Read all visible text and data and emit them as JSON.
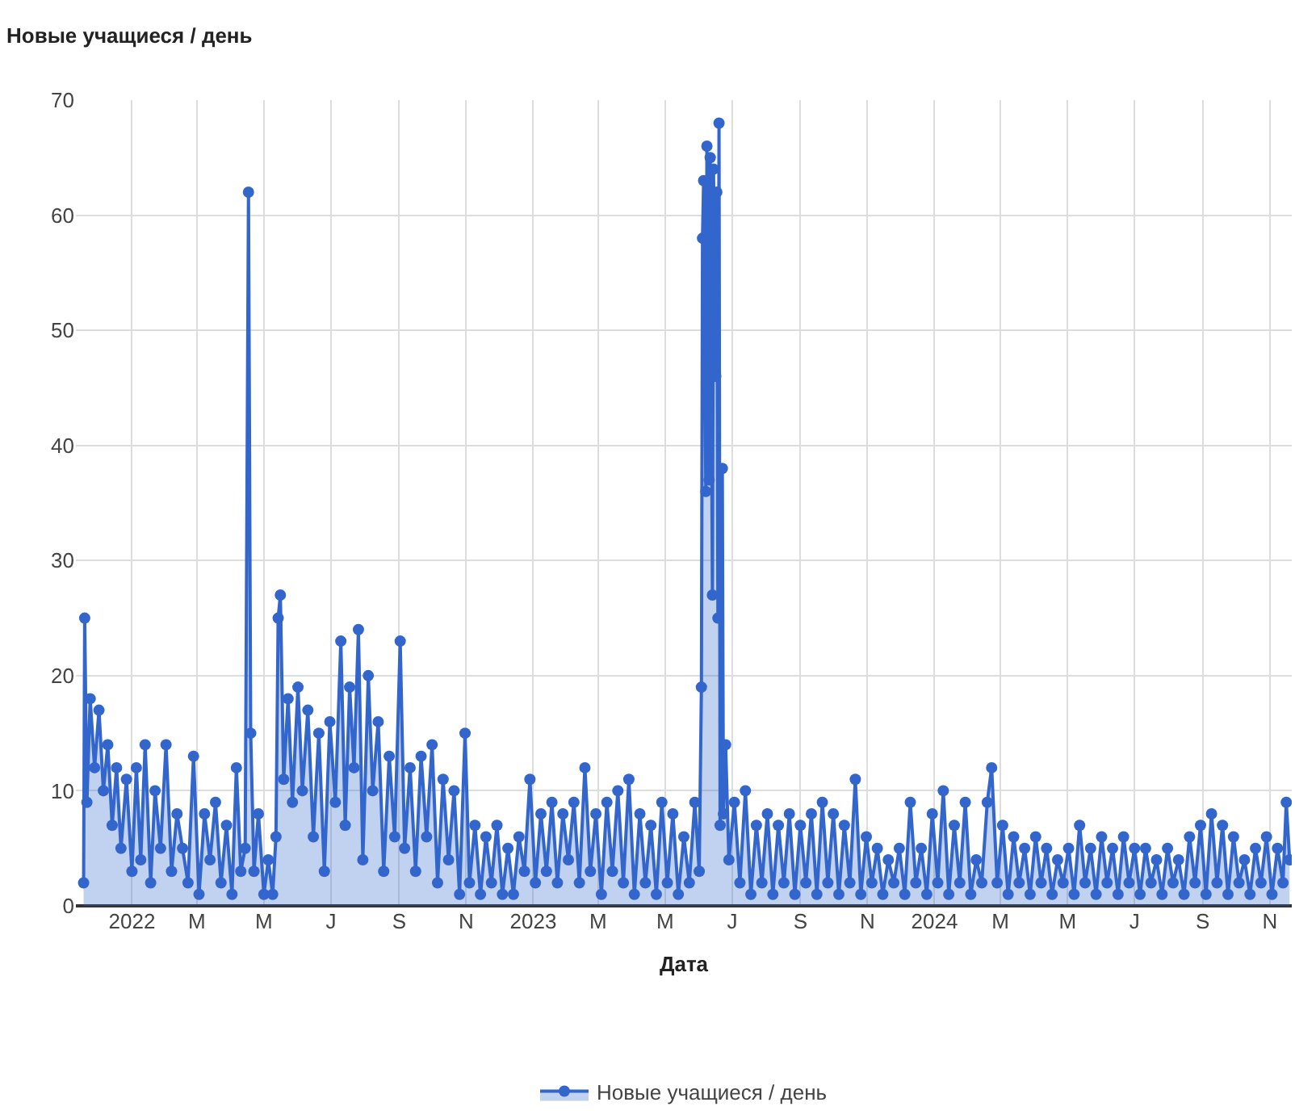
{
  "chart_data": {
    "type": "area",
    "title": "Новые учащиеся / день",
    "xlabel": "Дата",
    "xlim": [
      "2021-11-11",
      "2024-11-21"
    ],
    "xticks": [
      {
        "value": "2022-01-01",
        "label": "2022"
      },
      {
        "value": "2022-03-01",
        "label": "M"
      },
      {
        "value": "2022-05-01",
        "label": "M"
      },
      {
        "value": "2022-07-01",
        "label": "J"
      },
      {
        "value": "2022-09-01",
        "label": "S"
      },
      {
        "value": "2022-11-01",
        "label": "N"
      },
      {
        "value": "2023-01-01",
        "label": "2023"
      },
      {
        "value": "2023-03-01",
        "label": "M"
      },
      {
        "value": "2023-05-01",
        "label": "M"
      },
      {
        "value": "2023-07-01",
        "label": "J"
      },
      {
        "value": "2023-09-01",
        "label": "S"
      },
      {
        "value": "2023-11-01",
        "label": "N"
      },
      {
        "value": "2024-01-01",
        "label": "2024"
      },
      {
        "value": "2024-03-01",
        "label": "M"
      },
      {
        "value": "2024-05-01",
        "label": "M"
      },
      {
        "value": "2024-07-01",
        "label": "J"
      },
      {
        "value": "2024-09-01",
        "label": "S"
      },
      {
        "value": "2024-11-01",
        "label": "N"
      }
    ],
    "ylim": [
      0,
      70
    ],
    "yticks": [
      0,
      10,
      20,
      30,
      40,
      50,
      60,
      70
    ],
    "grid": true,
    "legend": "bottom",
    "marker": "circle",
    "line_style": "solid",
    "series": [
      {
        "name": "Новые учащиеся / день",
        "color": "#3366cc",
        "x": [
          "2021-11-18",
          "2021-11-19",
          "2021-11-21",
          "2021-11-24",
          "2021-11-28",
          "2021-12-02",
          "2021-12-06",
          "2021-12-10",
          "2021-12-14",
          "2021-12-18",
          "2021-12-22",
          "2021-12-27",
          "2022-01-01",
          "2022-01-05",
          "2022-01-09",
          "2022-01-13",
          "2022-01-18",
          "2022-01-22",
          "2022-01-27",
          "2022-02-01",
          "2022-02-06",
          "2022-02-11",
          "2022-02-16",
          "2022-02-21",
          "2022-02-26",
          "2022-03-03",
          "2022-03-08",
          "2022-03-13",
          "2022-03-18",
          "2022-03-23",
          "2022-03-28",
          "2022-04-02",
          "2022-04-06",
          "2022-04-10",
          "2022-04-14",
          "2022-04-17",
          "2022-04-19",
          "2022-04-22",
          "2022-04-26",
          "2022-05-01",
          "2022-05-05",
          "2022-05-09",
          "2022-05-12",
          "2022-05-14",
          "2022-05-16",
          "2022-05-19",
          "2022-05-23",
          "2022-05-27",
          "2022-06-01",
          "2022-06-05",
          "2022-06-10",
          "2022-06-15",
          "2022-06-20",
          "2022-06-25",
          "2022-06-30",
          "2022-07-05",
          "2022-07-10",
          "2022-07-14",
          "2022-07-18",
          "2022-07-22",
          "2022-07-26",
          "2022-07-30",
          "2022-08-04",
          "2022-08-08",
          "2022-08-13",
          "2022-08-18",
          "2022-08-23",
          "2022-08-28",
          "2022-09-02",
          "2022-09-06",
          "2022-09-11",
          "2022-09-16",
          "2022-09-21",
          "2022-09-26",
          "2022-10-01",
          "2022-10-06",
          "2022-10-11",
          "2022-10-16",
          "2022-10-21",
          "2022-10-26",
          "2022-10-31",
          "2022-11-04",
          "2022-11-09",
          "2022-11-14",
          "2022-11-19",
          "2022-11-24",
          "2022-11-29",
          "2022-12-04",
          "2022-12-09",
          "2022-12-14",
          "2022-12-19",
          "2022-12-24",
          "2022-12-29",
          "2023-01-03",
          "2023-01-08",
          "2023-01-13",
          "2023-01-18",
          "2023-01-23",
          "2023-01-28",
          "2023-02-02",
          "2023-02-07",
          "2023-02-12",
          "2023-02-17",
          "2023-02-22",
          "2023-02-27",
          "2023-03-04",
          "2023-03-09",
          "2023-03-14",
          "2023-03-19",
          "2023-03-24",
          "2023-03-29",
          "2023-04-03",
          "2023-04-08",
          "2023-04-13",
          "2023-04-18",
          "2023-04-23",
          "2023-04-28",
          "2023-05-03",
          "2023-05-08",
          "2023-05-13",
          "2023-05-18",
          "2023-05-23",
          "2023-05-28",
          "2023-06-01",
          "2023-06-03",
          "2023-06-04",
          "2023-06-05",
          "2023-06-07",
          "2023-06-08",
          "2023-06-10",
          "2023-06-11",
          "2023-06-13",
          "2023-06-14",
          "2023-06-16",
          "2023-06-17",
          "2023-06-18",
          "2023-06-19",
          "2023-06-20",
          "2023-06-22",
          "2023-06-23",
          "2023-06-25",
          "2023-06-28",
          "2023-07-03",
          "2023-07-08",
          "2023-07-13",
          "2023-07-18",
          "2023-07-23",
          "2023-07-28",
          "2023-08-02",
          "2023-08-07",
          "2023-08-12",
          "2023-08-17",
          "2023-08-22",
          "2023-08-27",
          "2023-09-01",
          "2023-09-06",
          "2023-09-11",
          "2023-09-16",
          "2023-09-21",
          "2023-09-26",
          "2023-10-01",
          "2023-10-06",
          "2023-10-11",
          "2023-10-16",
          "2023-10-21",
          "2023-10-26",
          "2023-10-31",
          "2023-11-05",
          "2023-11-10",
          "2023-11-15",
          "2023-11-20",
          "2023-11-25",
          "2023-11-30",
          "2023-12-05",
          "2023-12-10",
          "2023-12-15",
          "2023-12-20",
          "2023-12-25",
          "2023-12-30",
          "2024-01-04",
          "2024-01-09",
          "2024-01-14",
          "2024-01-19",
          "2024-01-24",
          "2024-01-29",
          "2024-02-03",
          "2024-02-08",
          "2024-02-13",
          "2024-02-18",
          "2024-02-22",
          "2024-02-27",
          "2024-03-03",
          "2024-03-08",
          "2024-03-13",
          "2024-03-18",
          "2024-03-23",
          "2024-03-28",
          "2024-04-02",
          "2024-04-07",
          "2024-04-12",
          "2024-04-17",
          "2024-04-22",
          "2024-04-27",
          "2024-05-02",
          "2024-05-07",
          "2024-05-12",
          "2024-05-17",
          "2024-05-22",
          "2024-05-27",
          "2024-06-01",
          "2024-06-06",
          "2024-06-11",
          "2024-06-16",
          "2024-06-21",
          "2024-06-26",
          "2024-07-01",
          "2024-07-06",
          "2024-07-11",
          "2024-07-16",
          "2024-07-21",
          "2024-07-26",
          "2024-07-31",
          "2024-08-05",
          "2024-08-10",
          "2024-08-15",
          "2024-08-20",
          "2024-08-25",
          "2024-08-30",
          "2024-09-04",
          "2024-09-09",
          "2024-09-14",
          "2024-09-19",
          "2024-09-24",
          "2024-09-29",
          "2024-10-04",
          "2024-10-09",
          "2024-10-14",
          "2024-10-19",
          "2024-10-24",
          "2024-10-29",
          "2024-11-03",
          "2024-11-08",
          "2024-11-13",
          "2024-11-16",
          "2024-11-19"
        ],
        "values": [
          2,
          25,
          9,
          18,
          12,
          17,
          10,
          14,
          7,
          12,
          5,
          11,
          3,
          12,
          4,
          14,
          2,
          10,
          5,
          14,
          3,
          8,
          5,
          2,
          13,
          1,
          8,
          4,
          9,
          2,
          7,
          1,
          12,
          3,
          5,
          62,
          15,
          3,
          8,
          1,
          4,
          1,
          6,
          25,
          27,
          11,
          18,
          9,
          19,
          10,
          17,
          6,
          15,
          3,
          16,
          9,
          23,
          7,
          19,
          12,
          24,
          4,
          20,
          10,
          16,
          3,
          13,
          6,
          23,
          5,
          12,
          3,
          13,
          6,
          14,
          2,
          11,
          4,
          10,
          1,
          15,
          2,
          7,
          1,
          6,
          2,
          7,
          1,
          5,
          1,
          6,
          3,
          11,
          2,
          8,
          3,
          9,
          2,
          8,
          4,
          9,
          2,
          12,
          3,
          8,
          1,
          9,
          3,
          10,
          2,
          11,
          1,
          8,
          2,
          7,
          1,
          9,
          2,
          8,
          1,
          6,
          2,
          9,
          3,
          19,
          58,
          63,
          36,
          66,
          37,
          65,
          27,
          64,
          46,
          62,
          25,
          68,
          7,
          38,
          8,
          14,
          4,
          9,
          2,
          10,
          1,
          7,
          2,
          8,
          1,
          7,
          2,
          8,
          1,
          7,
          2,
          8,
          1,
          9,
          2,
          8,
          1,
          7,
          2,
          11,
          1,
          6,
          2,
          5,
          1,
          4,
          2,
          5,
          1,
          9,
          2,
          5,
          1,
          8,
          2,
          10,
          1,
          7,
          2,
          9,
          1,
          4,
          2,
          9,
          12,
          2,
          7,
          1,
          6,
          2,
          5,
          1,
          6,
          2,
          5,
          1,
          4,
          2,
          5,
          1,
          7,
          2,
          5,
          1,
          6,
          2,
          5,
          1,
          6,
          2,
          5,
          1,
          5,
          2,
          4,
          1,
          5,
          2,
          4,
          1,
          6,
          2,
          7,
          1,
          8,
          2,
          7,
          1,
          6,
          2,
          4,
          1,
          5,
          2,
          6,
          1,
          5,
          2,
          9,
          4
        ]
      }
    ]
  }
}
